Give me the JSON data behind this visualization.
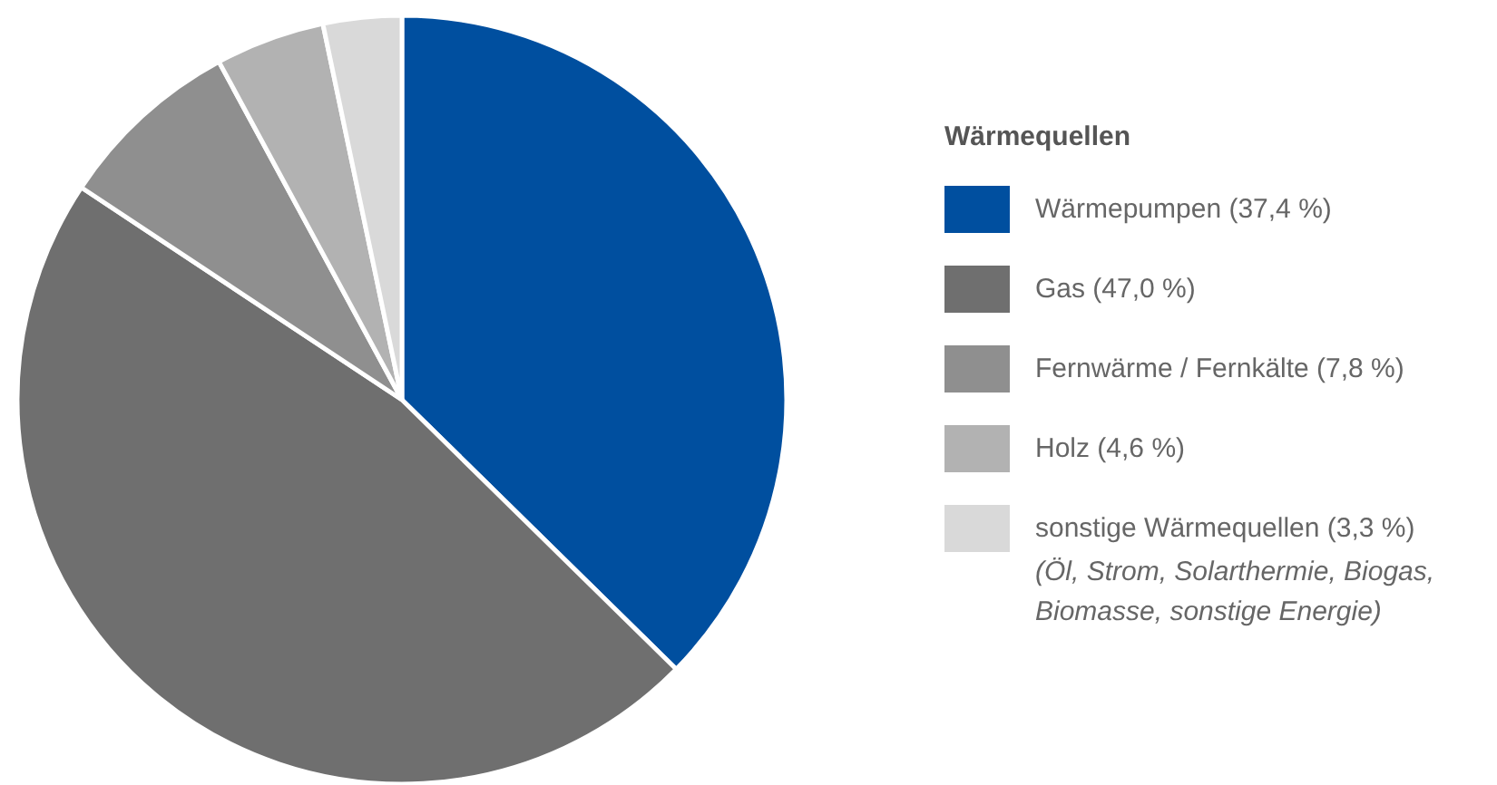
{
  "chart_data": {
    "type": "pie",
    "legend_title": "Wärmequellen",
    "legend": "right",
    "categories": [
      "Wärmepumpen (37,4 %)",
      "Gas (47,0 %)",
      "Fernwärme / Fernkälte (7,8 %)",
      "Holz (4,6 %)",
      "sonstige Wärmequellen (3,3 %)"
    ],
    "values": [
      37.4,
      47.0,
      7.8,
      4.6,
      3.3
    ],
    "colors": [
      "#004f9f",
      "#6f6f6f",
      "#8f8f8f",
      "#b2b2b2",
      "#d9d9d9"
    ],
    "annotations": [
      "(Öl, Strom, Solarthermie, Biogas, Biomasse, sonstige Energie)"
    ]
  }
}
